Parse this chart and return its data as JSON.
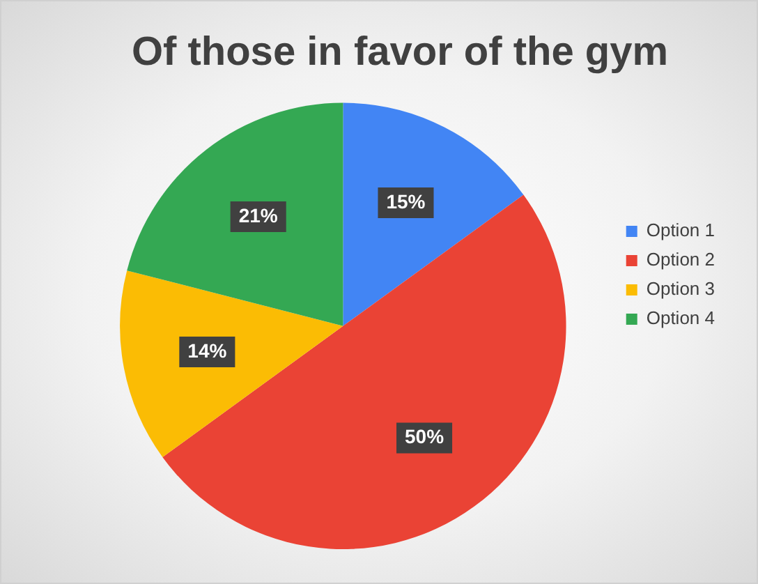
{
  "chart_data": {
    "type": "pie",
    "title": "Of those in favor of the gym",
    "categories": [
      "Option 1",
      "Option 2",
      "Option 3",
      "Option 4"
    ],
    "values": [
      15,
      50,
      14,
      21
    ],
    "colors": [
      "#4285f4",
      "#ea4335",
      "#fbbc04",
      "#34a853"
    ],
    "value_labels": [
      "15%",
      "50%",
      "14%",
      "21%"
    ],
    "legend": "right"
  }
}
